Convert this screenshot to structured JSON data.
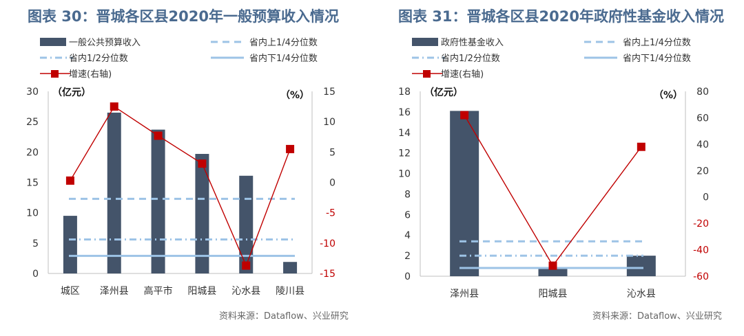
{
  "chart_data": [
    {
      "type": "bar",
      "title": "图表 30：晋城各区县2020年一般预算收入情况",
      "source": "资料来源：Dataflow、兴业研究",
      "left_unit": "（亿元）",
      "right_unit": "（%）",
      "categories": [
        "城区",
        "泽州县",
        "高平市",
        "阳城县",
        "沁水县",
        "陵川县"
      ],
      "series": [
        {
          "name": "一般公共预算收入",
          "kind": "bar",
          "axis": "left",
          "color": "#44546a",
          "values": [
            9.5,
            26.5,
            23.7,
            19.7,
            16.1,
            1.9
          ]
        },
        {
          "name": "省内上1/4分位数",
          "kind": "hline",
          "axis": "left",
          "style": "dash",
          "color": "#9dc3e6",
          "value": 12.3
        },
        {
          "name": "省内1/2分位数",
          "kind": "hline",
          "axis": "left",
          "style": "dashdot",
          "color": "#9dc3e6",
          "value": 5.6
        },
        {
          "name": "省内下1/4分位数",
          "kind": "hline",
          "axis": "left",
          "style": "solid",
          "color": "#9dc3e6",
          "value": 2.9
        },
        {
          "name": "增速(右轴)",
          "kind": "line",
          "axis": "right",
          "color": "#c00000",
          "values": [
            0.3,
            12.5,
            7.7,
            3.1,
            -13.7,
            5.5
          ]
        }
      ],
      "ylim_left": [
        0,
        30
      ],
      "yticks_left": [
        0,
        5,
        10,
        15,
        20,
        25,
        30
      ],
      "ylim_right": [
        -15,
        15
      ],
      "yticks_right": [
        -15,
        -10,
        -5,
        0,
        5,
        10,
        15
      ],
      "legend_position": "top",
      "grid": false
    },
    {
      "type": "bar",
      "title": "图表 31：晋城各区县2020年政府性基金收入情况",
      "source": "资料来源：Dataflow、兴业研究",
      "left_unit": "（亿元）",
      "right_unit": "（%）",
      "categories": [
        "泽州县",
        "阳城县",
        "沁水县"
      ],
      "series": [
        {
          "name": "政府性基金收入",
          "kind": "bar",
          "axis": "left",
          "color": "#44546a",
          "values": [
            16.1,
            0.7,
            2.0
          ]
        },
        {
          "name": "省内上1/4分位数",
          "kind": "hline",
          "axis": "left",
          "style": "dash",
          "color": "#9dc3e6",
          "value": 3.4
        },
        {
          "name": "省内1/2分位数",
          "kind": "hline",
          "axis": "left",
          "style": "dashdot",
          "color": "#9dc3e6",
          "value": 2.0
        },
        {
          "name": "省内下1/4分位数",
          "kind": "hline",
          "axis": "left",
          "style": "solid",
          "color": "#9dc3e6",
          "value": 0.8
        },
        {
          "name": "增速(右轴)",
          "kind": "line",
          "axis": "right",
          "color": "#c00000",
          "values": [
            62,
            -52,
            38
          ]
        }
      ],
      "ylim_left": [
        0,
        18
      ],
      "yticks_left": [
        0,
        2,
        4,
        6,
        8,
        10,
        12,
        14,
        16,
        18
      ],
      "ylim_right": [
        -60,
        80
      ],
      "yticks_right": [
        -60,
        -40,
        -20,
        0,
        20,
        40,
        60,
        80
      ],
      "legend_position": "top",
      "grid": false
    }
  ]
}
